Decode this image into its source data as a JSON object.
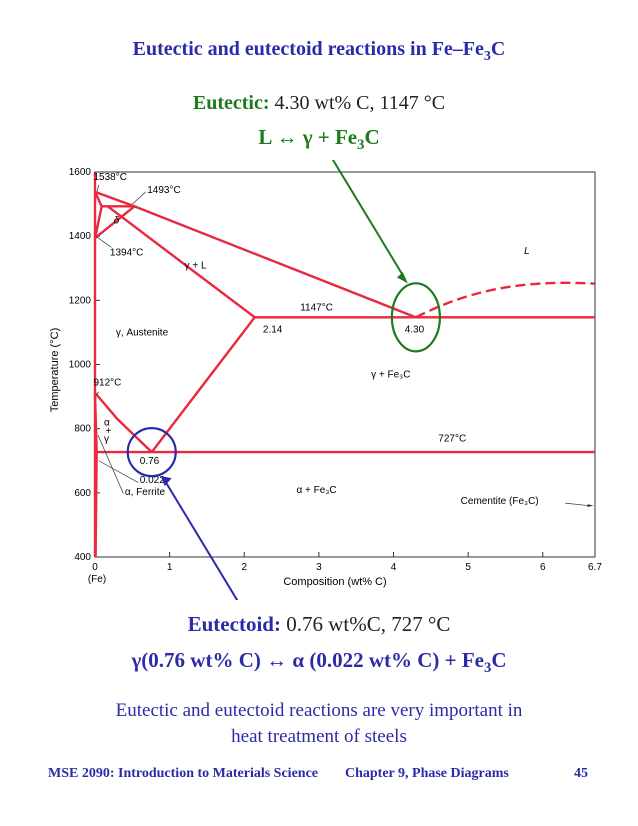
{
  "title": {
    "main": "Eutectic and eutectoid reactions in Fe–Fe",
    "sub": "3",
    "tail": "C"
  },
  "eutectic": {
    "label": "Eutectic:",
    "value": "4.30 wt% C, 1147 °C",
    "reaction_pre": "L  ↔  γ  + Fe",
    "reaction_sub": "3",
    "reaction_post": "C"
  },
  "eutectoid": {
    "label": "Eutectoid:",
    "value": "0.76 wt%C, 727 °C",
    "reaction_pre": "γ(0.76 wt% C)  ↔ α  (0.022 wt% C) + Fe",
    "reaction_sub": "3",
    "reaction_post": "C"
  },
  "note": {
    "line1": "Eutectic and eutectoid reactions are very important in",
    "line2": "heat treatment of steels"
  },
  "footer": {
    "course": "MSE 2090: Introduction to Materials Science",
    "chapter": "Chapter 9, Phase Diagrams",
    "page": "45"
  },
  "colors": {
    "blue": "#2b2ba8",
    "green": "#1d7a1d",
    "phase_line": "#e8283c",
    "arrow_green": "#1d7a1d",
    "arrow_blue": "#2b2ba8"
  },
  "chart_data": {
    "type": "diagram",
    "xlabel": "Composition (wt% C)",
    "ylabel": "Temperature (°C)",
    "xlim": [
      0,
      6.7
    ],
    "ylim": [
      400,
      1600
    ],
    "x_ticks": [
      "0",
      "1",
      "2",
      "3",
      "4",
      "5",
      "6",
      "6.7"
    ],
    "x_tick_values": [
      0,
      1,
      2,
      3,
      4,
      5,
      6,
      6.7
    ],
    "y_ticks": [
      "400",
      "600",
      "800",
      "1000",
      "1200",
      "1400",
      "1600"
    ],
    "y_tick_values": [
      400,
      600,
      800,
      1000,
      1200,
      1400,
      1600
    ],
    "x_origin_label": "(Fe)",
    "phase_labels": [
      "L",
      "γ + L",
      "γ, Austenite",
      "γ + Fe₃C",
      "α + Fe₃C",
      "δ",
      "α",
      "+",
      "γ",
      "α, Ferrite",
      "Cementite (Fe₃C)"
    ],
    "temperature_labels": [
      "1538°C",
      "1493°C",
      "1394°C",
      "1147°C",
      "912°C",
      "727°C"
    ],
    "composition_labels": [
      "2.14",
      "4.30",
      "0.76",
      "0.022"
    ],
    "lines": [
      {
        "name": "liquidus-left",
        "points": [
          [
            0,
            1538
          ],
          [
            0.53,
            1493
          ],
          [
            4.3,
            1147
          ]
        ]
      },
      {
        "name": "liquidus-right",
        "dashed": true,
        "points": [
          [
            4.3,
            1147
          ],
          [
            5.0,
            1230
          ],
          [
            5.7,
            1265
          ],
          [
            6.7,
            1252
          ]
        ]
      },
      {
        "name": "solidus",
        "points": [
          [
            0.17,
            1493
          ],
          [
            2.14,
            1147
          ]
        ]
      },
      {
        "name": "eutectic-isotherm",
        "points": [
          [
            2.14,
            1147
          ],
          [
            6.7,
            1147
          ]
        ]
      },
      {
        "name": "acm-line",
        "points": [
          [
            2.14,
            1147
          ],
          [
            0.76,
            727
          ]
        ]
      },
      {
        "name": "a3-line",
        "points": [
          [
            0,
            912
          ],
          [
            0.3,
            830
          ],
          [
            0.76,
            727
          ]
        ]
      },
      {
        "name": "eutectoid-isotherm",
        "points": [
          [
            0.022,
            727
          ],
          [
            6.7,
            727
          ]
        ]
      },
      {
        "name": "alpha-solvus",
        "points": [
          [
            0,
            912
          ],
          [
            0.022,
            727
          ]
        ]
      },
      {
        "name": "alpha-lower",
        "points": [
          [
            0.022,
            727
          ],
          [
            0.008,
            400
          ]
        ]
      },
      {
        "name": "delta-1",
        "points": [
          [
            0,
            1538
          ],
          [
            0.09,
            1493
          ]
        ]
      },
      {
        "name": "delta-2",
        "points": [
          [
            0.09,
            1493
          ],
          [
            0,
            1394
          ]
        ]
      },
      {
        "name": "delta-3",
        "points": [
          [
            0.53,
            1493
          ],
          [
            0,
            1394
          ]
        ]
      },
      {
        "name": "peritectic",
        "points": [
          [
            0.09,
            1493
          ],
          [
            0.53,
            1493
          ]
        ]
      }
    ]
  }
}
